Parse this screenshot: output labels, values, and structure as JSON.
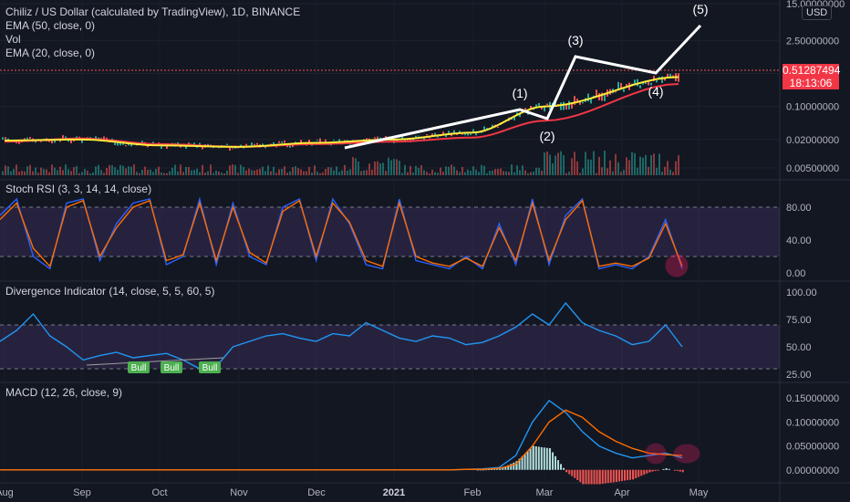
{
  "header": {
    "title": "Chiliz / US Dollar (calculated by TradingView), 1D, BINANCE",
    "indicators": [
      "EMA (50, close, 0)",
      "Vol",
      "EMA (20, close, 0)"
    ]
  },
  "price_axis": {
    "currency": "USD",
    "last_price": "0.51287494",
    "countdown": "18:13:06"
  },
  "panes": {
    "stoch_rsi": {
      "title": "Stoch RSI (3, 3, 14, 14, close)"
    },
    "divergence": {
      "title": "Divergence Indicator (14, close, 5, 5, 60, 5)",
      "bull_labels": [
        "Bull",
        "Bull",
        "Bull"
      ]
    },
    "macd": {
      "title": "MACD (12, 26, close, 9)"
    }
  },
  "colors": {
    "background": "#131722",
    "grid": "#2a2e39",
    "ema50": "#f23645",
    "ema20": "#ffeb3b",
    "up": "#26a69a",
    "down": "#ef5350",
    "stoch_k": "#2962ff",
    "stoch_d": "#ff6d00",
    "band": "#7e57c2",
    "divergence": "#2196f3",
    "macd": "#2196f3",
    "signal": "#ff6d00",
    "annotation": "#ffffff",
    "highlight": "#e91e63"
  },
  "chart_data": [
    {
      "type": "line",
      "title": "Chiliz / US Dollar (calculated by TradingView), 1D, BINANCE",
      "x_ticks": [
        "Aug",
        "Sep",
        "Oct",
        "Nov",
        "Dec",
        "2021",
        "Feb",
        "Mar",
        "Apr",
        "May"
      ],
      "y_ticks": [
        "15.00000000",
        "2.50000000",
        "0.50000000",
        "0.10000000",
        "0.02000000",
        "0.00500000"
      ],
      "y_scale": "log",
      "series": [
        {
          "name": "EMA (50, close, 0)",
          "x": [
            "Aug",
            "Sep",
            "Oct",
            "Nov",
            "Dec",
            "2021",
            "Feb",
            "Mar",
            "Apr"
          ],
          "values": [
            0.018,
            0.021,
            0.016,
            0.014,
            0.016,
            0.018,
            0.022,
            0.05,
            0.3
          ]
        },
        {
          "name": "EMA (20, close, 0)",
          "x": [
            "Aug",
            "Sep",
            "Oct",
            "Nov",
            "Dec",
            "2021",
            "Feb",
            "Mar",
            "Apr"
          ],
          "values": [
            0.019,
            0.02,
            0.015,
            0.014,
            0.017,
            0.02,
            0.028,
            0.1,
            0.42
          ]
        }
      ],
      "annotations": [
        {
          "label": "(1)",
          "x": "Feb",
          "y": 0.09
        },
        {
          "label": "(2)",
          "x": "Mar",
          "y": 0.06
        },
        {
          "label": "(3)",
          "x": "Mar",
          "y": 1.1
        },
        {
          "label": "(4)",
          "x": "Apr",
          "y": 0.45
        },
        {
          "label": "(5)",
          "x": "May",
          "y": 8.0
        }
      ]
    },
    {
      "type": "line",
      "title": "Stoch RSI (3, 3, 14, 14, close)",
      "y_ticks": [
        "80.00",
        "40.00",
        "0.00"
      ],
      "ylim": [
        0,
        100
      ],
      "band": [
        20,
        80
      ],
      "series": [
        {
          "name": "K",
          "values": [
            70,
            90,
            20,
            5,
            85,
            90,
            15,
            60,
            85,
            90,
            10,
            20,
            90,
            10,
            85,
            20,
            10,
            80,
            90,
            15,
            90,
            60,
            10,
            5,
            90,
            15,
            10,
            5,
            20,
            5,
            60,
            10,
            90,
            10,
            70,
            90,
            5,
            10,
            5,
            20,
            65,
            5
          ]
        },
        {
          "name": "D",
          "values": [
            65,
            85,
            30,
            8,
            80,
            88,
            20,
            55,
            80,
            88,
            15,
            22,
            85,
            15,
            80,
            25,
            12,
            75,
            88,
            20,
            85,
            62,
            15,
            8,
            85,
            20,
            12,
            8,
            18,
            8,
            55,
            15,
            85,
            15,
            65,
            88,
            8,
            12,
            8,
            18,
            60,
            8
          ]
        }
      ]
    },
    {
      "type": "line",
      "title": "Divergence Indicator (14, close, 5, 5, 60, 5)",
      "y_ticks": [
        "100.00",
        "75.00",
        "50.00",
        "25.00"
      ],
      "ylim": [
        25,
        100
      ],
      "band": [
        30,
        70
      ],
      "series": [
        {
          "name": "RSI",
          "values": [
            55,
            65,
            80,
            60,
            50,
            38,
            42,
            45,
            40,
            42,
            44,
            38,
            30,
            32,
            50,
            55,
            60,
            62,
            58,
            55,
            62,
            60,
            72,
            65,
            58,
            55,
            60,
            58,
            52,
            54,
            60,
            68,
            80,
            70,
            90,
            72,
            65,
            60,
            52,
            55,
            70,
            50
          ]
        }
      ]
    },
    {
      "type": "line",
      "title": "MACD (12, 26, close, 9)",
      "y_ticks": [
        "0.15000000",
        "0.10000000",
        "0.05000000",
        "0.00000000"
      ],
      "ylim": [
        -0.01,
        0.16
      ],
      "series": [
        {
          "name": "MACD",
          "values": [
            0,
            0,
            0,
            0,
            0,
            0,
            0,
            0,
            0,
            0,
            0,
            0,
            0,
            0,
            0,
            0,
            0,
            0,
            0,
            0,
            0,
            0,
            0,
            0,
            0,
            0,
            0,
            0,
            0.001,
            0.002,
            0.005,
            0.03,
            0.1,
            0.145,
            0.12,
            0.08,
            0.05,
            0.035,
            0.025,
            0.03,
            0.035,
            0.025
          ]
        },
        {
          "name": "Signal",
          "values": [
            0,
            0,
            0,
            0,
            0,
            0,
            0,
            0,
            0,
            0,
            0,
            0,
            0,
            0,
            0,
            0,
            0,
            0,
            0,
            0,
            0,
            0,
            0,
            0,
            0,
            0,
            0,
            0,
            0.001,
            0.001,
            0.003,
            0.012,
            0.05,
            0.1,
            0.125,
            0.11,
            0.08,
            0.06,
            0.045,
            0.035,
            0.032,
            0.03
          ]
        }
      ]
    }
  ]
}
